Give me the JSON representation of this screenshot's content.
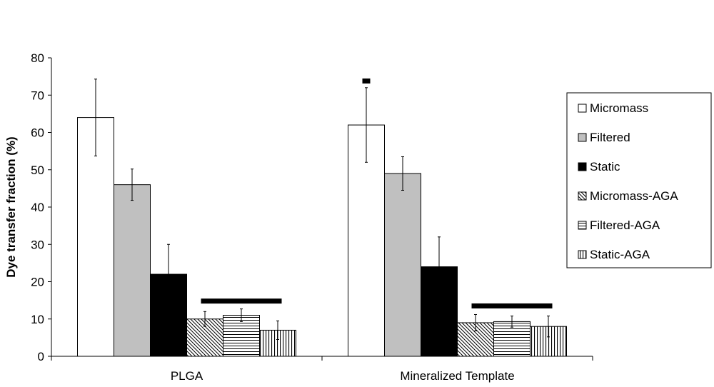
{
  "chart_data": {
    "type": "bar",
    "ylabel": "Dye transfer fraction (%)",
    "xlabel": "",
    "ylim": [
      0,
      80
    ],
    "yticks": [
      0,
      10,
      20,
      30,
      40,
      50,
      60,
      70,
      80
    ],
    "categories": [
      "PLGA",
      "Mineralized Template"
    ],
    "series": [
      {
        "name": "Micromass",
        "values": [
          64,
          62
        ],
        "errors": [
          10.3,
          10
        ],
        "fill": "#ffffff",
        "pattern": "none"
      },
      {
        "name": "Filtered",
        "values": [
          46,
          49
        ],
        "errors": [
          4.2,
          4.5
        ],
        "fill": "#c0c0c0",
        "pattern": "none"
      },
      {
        "name": "Static",
        "values": [
          22,
          24
        ],
        "errors": [
          8,
          8
        ],
        "fill": "#000000",
        "pattern": "none"
      },
      {
        "name": "Micromass-AGA",
        "values": [
          10,
          9
        ],
        "errors": [
          2,
          2.2
        ],
        "fill": "#ffffff",
        "pattern": "diagonal"
      },
      {
        "name": "Filtered-AGA",
        "values": [
          11,
          9.3
        ],
        "errors": [
          1.7,
          1.5
        ],
        "fill": "#ffffff",
        "pattern": "horizontal"
      },
      {
        "name": "Static-AGA",
        "values": [
          7,
          8
        ],
        "errors": [
          2.5,
          2.8
        ],
        "fill": "#ffffff",
        "pattern": "vertical"
      }
    ],
    "significance_bars": [
      {
        "category": 0,
        "from_series": 3,
        "to_series": 5,
        "y": 14.8
      },
      {
        "category": 1,
        "from_series": 0,
        "to_series": 0,
        "y": 73.8
      },
      {
        "category": 1,
        "from_series": 3,
        "to_series": 5,
        "y": 13.5
      }
    ],
    "grid": false,
    "legend_position": "right"
  }
}
